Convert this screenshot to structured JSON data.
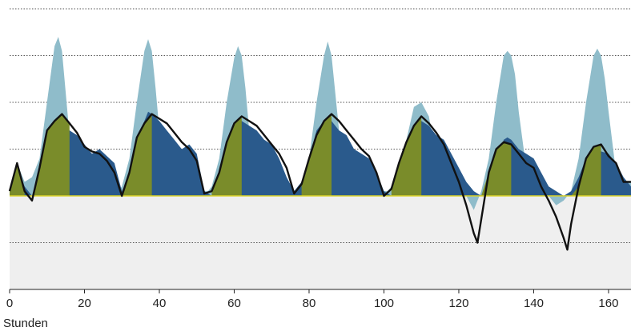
{
  "chart_data": {
    "type": "area",
    "xlabel": "Stunden",
    "ylabel": "",
    "xlim": [
      0,
      166
    ],
    "x_ticks": [
      0,
      20,
      40,
      60,
      80,
      100,
      120,
      140,
      160
    ],
    "ylim": [
      -2,
      4
    ],
    "gridlines_y": [
      -1,
      1,
      2,
      3,
      4
    ],
    "zero_line": 0,
    "negative_region": "shaded light grey below zero",
    "colors": {
      "light_blue": "#8fbcca",
      "dark_blue": "#2a5a8c",
      "olive": "#7a8c2a",
      "line": "#111111",
      "yellow": "#d9d227",
      "neg_band": "#efefef",
      "grid": "#555555"
    },
    "series": [
      {
        "x": [
          0,
          2,
          4,
          6,
          8,
          10,
          12,
          13,
          14,
          15,
          16,
          18,
          20,
          22,
          24,
          26,
          28,
          29,
          30,
          32,
          34,
          36,
          37,
          38,
          39,
          40,
          42,
          44,
          46,
          48,
          50,
          52,
          53,
          54,
          56,
          58,
          60,
          61,
          62,
          63,
          64,
          66,
          68,
          70,
          72,
          74,
          76,
          77,
          78,
          80,
          82,
          84,
          85,
          86,
          87,
          88,
          90,
          92,
          94,
          96,
          98,
          100,
          101,
          102,
          104,
          106,
          108,
          109,
          110,
          111,
          112,
          114,
          116,
          118,
          120,
          122,
          124,
          126,
          128,
          130,
          132,
          133,
          134,
          135,
          136,
          138,
          140,
          142,
          144,
          146,
          148,
          150,
          152,
          154,
          156,
          157,
          158,
          159,
          160,
          162,
          164,
          166
        ],
        "values": [
          0.1,
          0.7,
          0.3,
          0.4,
          0.8,
          2.0,
          3.2,
          3.4,
          3.1,
          2.2,
          1.3,
          0.5,
          0.3,
          0.3,
          0.3,
          0.3,
          0.2,
          0.1,
          0.2,
          0.8,
          2.0,
          3.1,
          3.35,
          3.1,
          2.3,
          1.4,
          0.5,
          0.3,
          0.3,
          0.3,
          0.2,
          0.1,
          0.1,
          0.2,
          0.8,
          2.0,
          2.95,
          3.2,
          3.0,
          2.3,
          1.4,
          0.5,
          0.3,
          0.3,
          0.3,
          0.2,
          0.1,
          0.1,
          0.2,
          0.8,
          2.0,
          3.0,
          3.3,
          3.0,
          2.2,
          1.4,
          0.5,
          0.3,
          0.3,
          0.3,
          0.2,
          0.1,
          0.1,
          0.2,
          0.5,
          1.2,
          1.9,
          1.95,
          2.0,
          1.85,
          1.7,
          0.8,
          0.3,
          0.2,
          0.1,
          0.0,
          -0.3,
          0.1,
          0.8,
          2.0,
          3.0,
          3.1,
          3.0,
          2.6,
          1.8,
          0.6,
          0.2,
          0.1,
          0.0,
          -0.2,
          -0.1,
          0.1,
          0.8,
          2.0,
          3.0,
          3.15,
          3.0,
          2.5,
          1.8,
          0.5,
          0.3,
          0.3
        ]
      },
      {
        "x": [
          0,
          2,
          4,
          6,
          8,
          10,
          12,
          13,
          14,
          16,
          18,
          20,
          22,
          24,
          26,
          28,
          30,
          32,
          34,
          36,
          37,
          38,
          40,
          42,
          44,
          46,
          48,
          50,
          52,
          54,
          56,
          58,
          60,
          61,
          62,
          64,
          66,
          68,
          70,
          72,
          74,
          76,
          78,
          80,
          82,
          84,
          85,
          86,
          88,
          90,
          92,
          94,
          96,
          98,
          100,
          102,
          104,
          106,
          108,
          110,
          112,
          114,
          116,
          118,
          120,
          122,
          124,
          126,
          128,
          130,
          132,
          133,
          134,
          136,
          138,
          140,
          142,
          144,
          146,
          148,
          150,
          152,
          154,
          156,
          158,
          160,
          162,
          164,
          166
        ],
        "values": [
          0.1,
          0.6,
          0.2,
          0.0,
          0.4,
          1.2,
          1.5,
          1.6,
          1.55,
          1.4,
          1.3,
          1.1,
          0.9,
          1.0,
          0.85,
          0.7,
          0.1,
          0.4,
          1.2,
          1.6,
          1.8,
          1.75,
          1.6,
          1.4,
          1.2,
          1.0,
          1.1,
          0.9,
          0.1,
          0.0,
          0.4,
          1.1,
          1.5,
          1.6,
          1.6,
          1.5,
          1.4,
          1.2,
          1.1,
          0.8,
          0.4,
          0.1,
          0.3,
          0.8,
          1.4,
          1.6,
          1.7,
          1.6,
          1.4,
          1.3,
          1.0,
          0.9,
          0.8,
          0.5,
          0.1,
          0.0,
          0.5,
          1.0,
          1.4,
          1.6,
          1.5,
          1.3,
          1.2,
          0.9,
          0.6,
          0.3,
          0.1,
          0.0,
          0.1,
          0.6,
          1.2,
          1.25,
          1.2,
          1.0,
          0.9,
          0.8,
          0.5,
          0.2,
          0.1,
          0.0,
          0.1,
          0.4,
          0.8,
          1.0,
          0.95,
          0.9,
          0.7,
          0.4,
          0.2
        ]
      },
      {
        "x": [
          0,
          2,
          4,
          6,
          8,
          10,
          12,
          14,
          16,
          18,
          20,
          22,
          24,
          26,
          28,
          30,
          32,
          34,
          36,
          38,
          40,
          42,
          44,
          46,
          48,
          50,
          52,
          54,
          56,
          58,
          60,
          62,
          64,
          66,
          68,
          70,
          72,
          74,
          76,
          78,
          80,
          82,
          84,
          86,
          88,
          90,
          92,
          94,
          96,
          98,
          100,
          102,
          104,
          106,
          108,
          110,
          112,
          114,
          116,
          118,
          120,
          122,
          124,
          125,
          126,
          128,
          130,
          132,
          134,
          136,
          138,
          140,
          142,
          144,
          146,
          148,
          149,
          150,
          152,
          154,
          156,
          158,
          160,
          162,
          164,
          166
        ],
        "values": [
          0.1,
          0.7,
          0.1,
          -0.1,
          0.6,
          1.4,
          1.6,
          1.75,
          1.55,
          1.35,
          1.05,
          0.95,
          0.9,
          0.75,
          0.5,
          0.0,
          0.5,
          1.25,
          1.55,
          1.75,
          1.65,
          1.55,
          1.35,
          1.15,
          1.0,
          0.75,
          0.05,
          0.1,
          0.5,
          1.15,
          1.55,
          1.7,
          1.6,
          1.5,
          1.3,
          1.1,
          0.9,
          0.6,
          0.05,
          0.25,
          0.8,
          1.3,
          1.6,
          1.75,
          1.6,
          1.4,
          1.2,
          1.0,
          0.85,
          0.5,
          0.0,
          0.15,
          0.7,
          1.15,
          1.5,
          1.7,
          1.55,
          1.35,
          1.1,
          0.7,
          0.3,
          -0.2,
          -0.8,
          -1.0,
          -0.5,
          0.5,
          1.0,
          1.15,
          1.1,
          0.9,
          0.7,
          0.6,
          0.2,
          -0.1,
          -0.45,
          -0.9,
          -1.15,
          -0.6,
          0.2,
          0.8,
          1.05,
          1.1,
          0.85,
          0.7,
          0.3,
          0.3
        ]
      }
    ]
  }
}
